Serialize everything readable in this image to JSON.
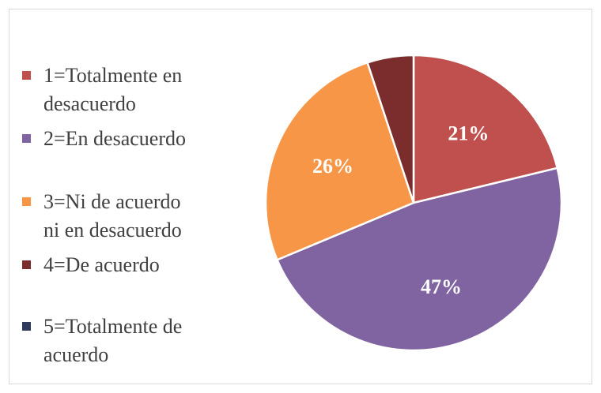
{
  "chart_data": {
    "type": "pie",
    "title": "",
    "legend_position": "left",
    "series": [
      {
        "name": "1=Totalmente en\ndesacuerdo",
        "value": 21,
        "label": "21%",
        "color": "#C0504D"
      },
      {
        "name": "2=En desacuerdo",
        "value": 47,
        "label": "47%",
        "color": "#8064A2"
      },
      {
        "name": "3=Ni de acuerdo\nni en desacuerdo",
        "value": 26,
        "label": "26%",
        "color": "#F79646"
      },
      {
        "name": "4=De acuerdo",
        "value": 5,
        "label": "",
        "color": "#7B2C2C"
      },
      {
        "name": "5=Totalmente de\nacuerdo",
        "value": 0,
        "label": "",
        "color": "#2E3A5C"
      }
    ]
  }
}
